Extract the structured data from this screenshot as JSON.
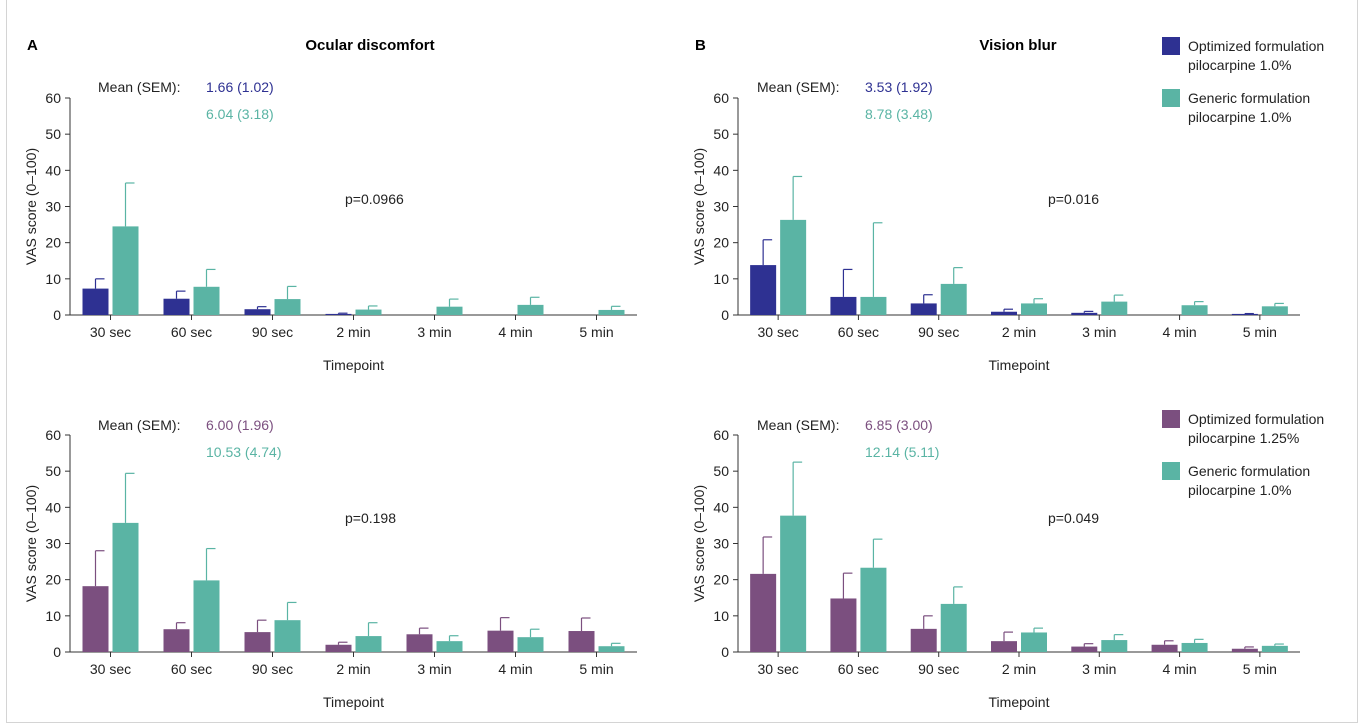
{
  "panels": [
    {
      "letter": "A",
      "title": "Ocular discomfort"
    },
    {
      "letter": "B",
      "title": "Vision blur"
    }
  ],
  "legends": [
    {
      "entries": [
        {
          "line1": "Optimized formulation",
          "line2": "pilocarpine 1.0%",
          "color": "#2e3192"
        },
        {
          "line1": "Generic formulation",
          "line2": "pilocarpine 1.0%",
          "color": "#5ab4a4"
        }
      ]
    },
    {
      "entries": [
        {
          "line1": "Optimized formulation",
          "line2": "pilocarpine 1.25%",
          "color": "#7b4f7f"
        },
        {
          "line1": "Generic formulation",
          "line2": "pilocarpine 1.0%",
          "color": "#5ab4a4"
        }
      ]
    }
  ],
  "chart_data": [
    {
      "type": "bar",
      "panel": "A",
      "title": "Ocular discomfort",
      "categories": [
        "30 sec",
        "60 sec",
        "90 sec",
        "2 min",
        "3 min",
        "4 min",
        "5 min"
      ],
      "xlabel": "Timepoint",
      "ylabel": "VAS score (0–100)",
      "ylim": [
        0,
        60
      ],
      "yticks": [
        0,
        10,
        20,
        30,
        40,
        50,
        60
      ],
      "mean_prefix": "Mean (SEM):",
      "p_value": "p=0.0966",
      "series": [
        {
          "color": "#2e3192",
          "mean_sem": "1.66 (1.02)",
          "values": [
            7.3,
            4.5,
            1.6,
            0.3,
            0,
            0,
            0
          ],
          "errors": [
            2.7,
            2.1,
            0.7,
            0.2,
            0,
            0,
            0
          ]
        },
        {
          "color": "#5ab4a4",
          "mean_sem": "6.04 (3.18)",
          "values": [
            24.5,
            7.8,
            4.4,
            1.5,
            2.3,
            2.8,
            1.4
          ],
          "errors": [
            12.0,
            4.8,
            3.5,
            1.0,
            2.1,
            2.1,
            1.0
          ]
        }
      ]
    },
    {
      "type": "bar",
      "panel": "B",
      "title": "Vision blur",
      "categories": [
        "30 sec",
        "60 sec",
        "90 sec",
        "2 min",
        "3 min",
        "4 min",
        "5 min"
      ],
      "xlabel": "Timepoint",
      "ylabel": "VAS score (0–100)",
      "ylim": [
        0,
        60
      ],
      "yticks": [
        0,
        10,
        20,
        30,
        40,
        50,
        60
      ],
      "mean_prefix": "Mean (SEM):",
      "p_value": "p=0.016",
      "series": [
        {
          "color": "#2e3192",
          "mean_sem": "3.53 (1.92)",
          "values": [
            13.8,
            5.0,
            3.2,
            0.9,
            0.6,
            0,
            0.3
          ],
          "errors": [
            7.0,
            7.6,
            2.4,
            0.7,
            0.4,
            0,
            0.1
          ]
        },
        {
          "color": "#5ab4a4",
          "mean_sem": "8.78 (3.48)",
          "values": [
            26.3,
            5.0,
            8.6,
            3.2,
            3.7,
            2.7,
            2.4
          ],
          "errors": [
            12.0,
            20.5,
            4.5,
            1.3,
            1.8,
            1.0,
            0.8
          ]
        }
      ]
    },
    {
      "type": "bar",
      "panel": "A",
      "categories": [
        "30 sec",
        "60 sec",
        "90 sec",
        "2 min",
        "3 min",
        "4 min",
        "5 min"
      ],
      "xlabel": "Timepoint",
      "ylabel": "VAS score (0–100)",
      "ylim": [
        0,
        60
      ],
      "yticks": [
        0,
        10,
        20,
        30,
        40,
        50,
        60
      ],
      "mean_prefix": "Mean (SEM):",
      "p_value": "p=0.198",
      "series": [
        {
          "color": "#7b4f7f",
          "mean_sem": "6.00 (1.96)",
          "values": [
            18.2,
            6.3,
            5.5,
            2.0,
            4.9,
            5.9,
            5.8
          ],
          "errors": [
            9.8,
            1.8,
            3.3,
            0.7,
            1.7,
            3.6,
            3.6
          ]
        },
        {
          "color": "#5ab4a4",
          "mean_sem": "10.53 (4.74)",
          "values": [
            35.7,
            19.8,
            8.8,
            4.4,
            3.0,
            4.1,
            1.6
          ],
          "errors": [
            13.7,
            8.8,
            4.9,
            3.7,
            1.5,
            2.2,
            0.8
          ]
        }
      ]
    },
    {
      "type": "bar",
      "panel": "B",
      "categories": [
        "30 sec",
        "60 sec",
        "90 sec",
        "2 min",
        "3 min",
        "4 min",
        "5 min"
      ],
      "xlabel": "Timepoint",
      "ylabel": "VAS score (0–100)",
      "ylim": [
        0,
        60
      ],
      "yticks": [
        0,
        10,
        20,
        30,
        40,
        50,
        60
      ],
      "mean_prefix": "Mean (SEM):",
      "p_value": "p=0.049",
      "series": [
        {
          "color": "#7b4f7f",
          "mean_sem": "6.85 (3.00)",
          "values": [
            21.6,
            14.8,
            6.4,
            3.0,
            1.5,
            2.0,
            0.9
          ],
          "errors": [
            10.2,
            7.0,
            3.6,
            2.5,
            0.8,
            1.1,
            0.5
          ]
        },
        {
          "color": "#5ab4a4",
          "mean_sem": "12.14 (5.11)",
          "values": [
            37.7,
            23.3,
            13.3,
            5.4,
            3.3,
            2.5,
            1.7
          ],
          "errors": [
            14.8,
            7.9,
            4.7,
            1.2,
            1.5,
            1.0,
            0.5
          ]
        }
      ]
    }
  ]
}
